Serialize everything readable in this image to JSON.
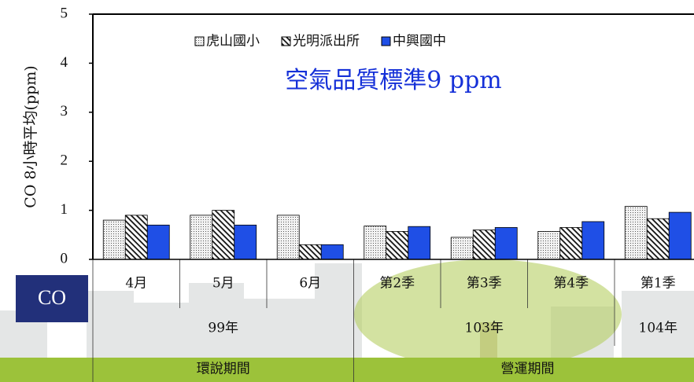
{
  "chart_data": {
    "type": "bar",
    "y_label": "CO 8小時平均(ppm)",
    "annotation": "空氣品質標準9 ppm",
    "row_label": "CO",
    "categories": [
      "4月",
      "5月",
      "6月",
      "第2季",
      "第3季",
      "第4季",
      "第1季"
    ],
    "years": [
      "99年",
      null,
      null,
      "103年",
      null,
      null,
      "104年"
    ],
    "periods": [
      "環說期間",
      null,
      null,
      "營運期間",
      null,
      null,
      null
    ],
    "series": [
      {
        "name": "虎山國小",
        "color": "#e6e6e6",
        "pattern": "dots",
        "values": [
          0.8,
          0.9,
          0.9,
          0.68,
          0.45,
          0.57,
          1.08
        ]
      },
      {
        "name": "光明派出所",
        "color": "#ffffff",
        "pattern": "hatch",
        "values": [
          0.9,
          1.0,
          0.3,
          0.57,
          0.6,
          0.65,
          0.83
        ]
      },
      {
        "name": "中興國中",
        "color": "#1f4fe6",
        "pattern": "solid",
        "values": [
          0.7,
          0.7,
          0.3,
          0.67,
          0.65,
          0.77,
          0.96
        ]
      }
    ],
    "ylim": [
      0,
      5
    ],
    "yticks": [
      0,
      1,
      2,
      3,
      4,
      5
    ],
    "legend": "top"
  }
}
